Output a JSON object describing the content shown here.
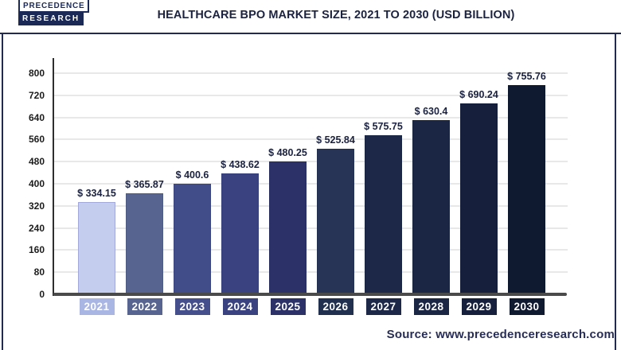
{
  "page": {
    "background": "#ffffff",
    "frame_color": "#232a52"
  },
  "header": {
    "logo_line1": "PRECEDENCE",
    "logo_line2": "RESEARCH",
    "title": "HEALTHCARE BPO MARKET SIZE, 2021 TO 2030 (USD BILLION)"
  },
  "chart_data": {
    "type": "bar",
    "title": "Healthcare BPO Market Size, 2021 to 2030 (USD Billion)",
    "unit": "USD Billion",
    "categories": [
      "2021",
      "2022",
      "2023",
      "2024",
      "2025",
      "2026",
      "2027",
      "2028",
      "2029",
      "2030"
    ],
    "values": [
      334.15,
      365.87,
      400.6,
      438.62,
      480.25,
      525.84,
      575.75,
      630.4,
      690.24,
      755.76
    ],
    "value_labels": [
      "$ 334.15",
      "$ 365.87",
      "$ 400.6",
      "$ 438.62",
      "$ 480.25",
      "$ 525.84",
      "$ 575.75",
      "$ 630.4",
      "$ 690.24",
      "$ 755.76"
    ],
    "ylim": [
      0,
      800
    ],
    "yticks": [
      0,
      80,
      160,
      240,
      320,
      400,
      480,
      560,
      640,
      720,
      800
    ],
    "grid": true,
    "legend_position": "none",
    "bar_colors": [
      "#c4cded",
      "#56648f",
      "#414d88",
      "#3a437f",
      "#2c3268",
      "#273456",
      "#1d2848",
      "#1b2645",
      "#161f3b",
      "#0f1930"
    ],
    "badge_colors": [
      "#a9b5e2",
      "#56648f",
      "#454f8b",
      "#3a437f",
      "#2c3268",
      "#20304e",
      "#1d2848",
      "#1b2645",
      "#161f3b",
      "#0f1930"
    ],
    "first_bar_border": "#a2a8d9",
    "value_label_color": "#1b2240",
    "axis_color": "#2e2e2e",
    "gridline_color": "#e8e8e8"
  },
  "footer": {
    "source": "Source: www.precedenceresearch.com"
  }
}
